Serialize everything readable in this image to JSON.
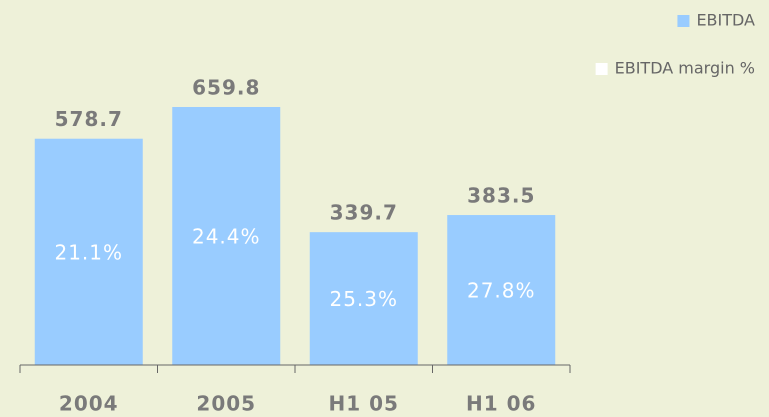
{
  "chart_data": {
    "type": "bar",
    "categories": [
      "2004",
      "2005",
      "H1 05",
      "H1 06"
    ],
    "series": [
      {
        "name": "EBITDA",
        "color": "#99ccff",
        "values": [
          578.7,
          659.8,
          339.7,
          383.5
        ]
      },
      {
        "name": "EBITDA margin %",
        "color": "#ffffff",
        "values": [
          21.1,
          24.4,
          25.3,
          27.8
        ],
        "value_labels": [
          "21.1%",
          "24.4%",
          "25.3%",
          "27.8%"
        ]
      }
    ]
  }
}
